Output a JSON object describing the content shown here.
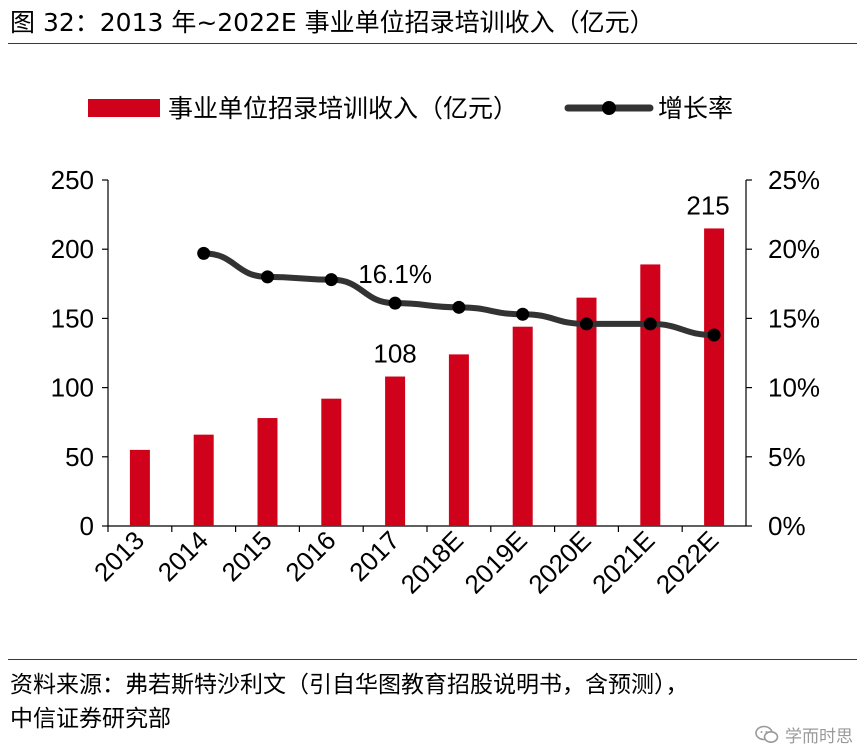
{
  "figure": {
    "title": "图 32：2013 年~2022E 事业单位招录培训收入（亿元）",
    "source_line1": "资料来源：弗若斯特沙利文（引自华图教育招股说明书，含预测），",
    "source_line2": "中信证券研究部",
    "watermark": "学而时思",
    "watermark_icon": "wechat-icon"
  },
  "chart_data": {
    "type": "bar",
    "categories": [
      "2013",
      "2014",
      "2015",
      "2016",
      "2017",
      "2018E",
      "2019E",
      "2020E",
      "2021E",
      "2022E"
    ],
    "series": [
      {
        "name": "事业单位招录培训收入（亿元）",
        "type": "bar",
        "axis": "left",
        "color": "#d0021b",
        "values": [
          55,
          66,
          78,
          92,
          108,
          124,
          144,
          165,
          189,
          215
        ]
      },
      {
        "name": "增长率",
        "type": "line",
        "axis": "right",
        "color": "#333333",
        "values": [
          null,
          19.7,
          18.0,
          17.8,
          16.1,
          15.8,
          15.3,
          14.6,
          14.6,
          13.8
        ]
      }
    ],
    "left_axis": {
      "ylim": [
        0,
        250
      ],
      "ticks": [
        "0",
        "50",
        "100",
        "150",
        "200",
        "250"
      ]
    },
    "right_axis": {
      "ylim": [
        0,
        25
      ],
      "ticks": [
        "0%",
        "5%",
        "10%",
        "15%",
        "20%",
        "25%"
      ]
    },
    "annotations": [
      "108",
      "215",
      "16.1%"
    ],
    "legend_position": "top",
    "grid": false
  }
}
